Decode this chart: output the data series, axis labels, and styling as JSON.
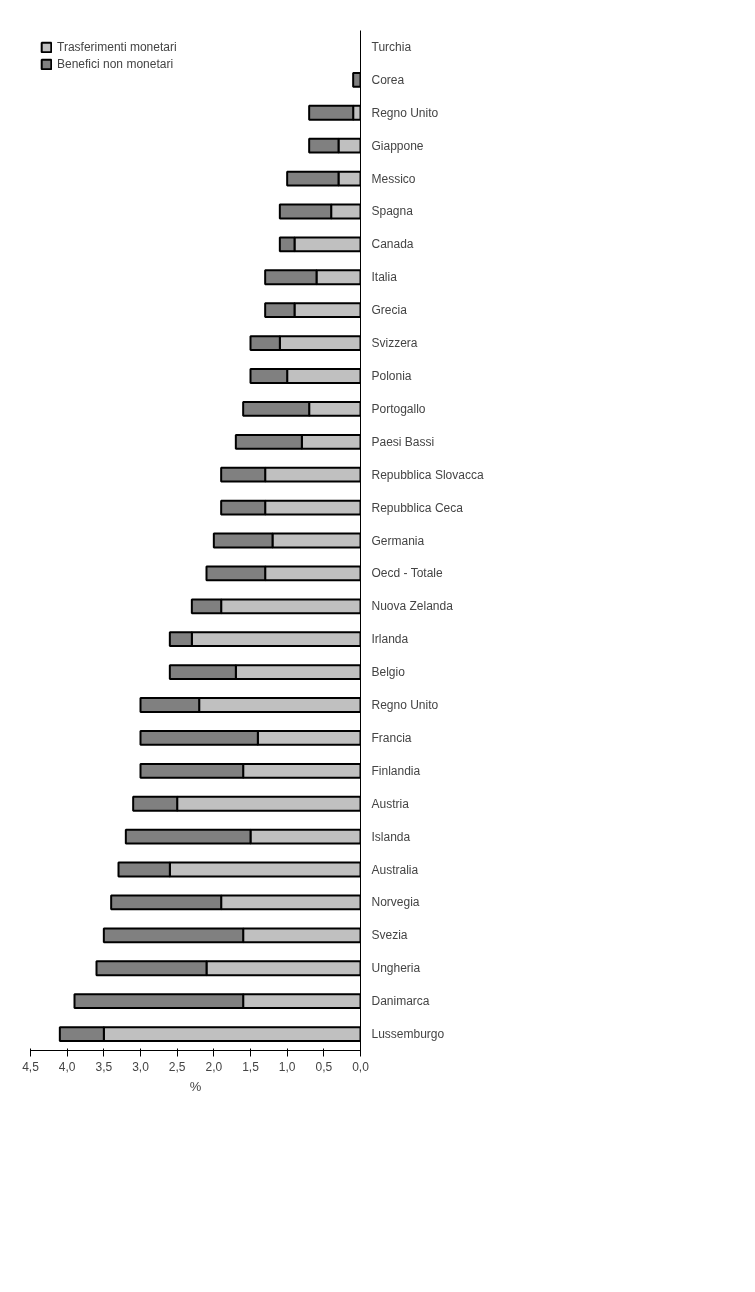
{
  "chart_data": {
    "type": "bar",
    "orientation": "horizontal",
    "stacked": true,
    "categories": [
      "Turchia",
      "Corea",
      "Regno Unito",
      "Giappone",
      "Messico",
      "Spagna",
      "Canada",
      "Italia",
      "Grecia",
      "Svizzera",
      "Polonia",
      "Portogallo",
      "Paesi Bassi",
      "Repubblica Slovacca",
      "Repubblica Ceca",
      "Germania",
      "Oecd - Totale",
      "Nuova Zelanda",
      "Irlanda",
      "Belgio",
      "Regno Unito",
      "Francia",
      "Finlandia",
      "Austria",
      "Islanda",
      "Australia",
      "Norvegia",
      "Svezia",
      "Ungheria",
      "Danimarca",
      "Lussemburgo"
    ],
    "series": [
      {
        "name": "Trasferimenti monetari",
        "color": "#c0c0c0",
        "values": [
          null,
          0,
          0.1,
          0.3,
          0.3,
          0.4,
          0.9,
          0.6,
          0.9,
          1.1,
          1.0,
          0.7,
          0.8,
          1.3,
          1.3,
          1.2,
          1.3,
          1.9,
          2.3,
          1.7,
          2.2,
          1.4,
          1.6,
          2.5,
          1.5,
          2.6,
          1.9,
          1.6,
          2.1,
          1.6,
          3.5
        ]
      },
      {
        "name": "Benefici non monetari",
        "color": "#808080",
        "values": [
          null,
          0.1,
          0.6,
          0.4,
          0.7,
          0.7,
          0.2,
          0.7,
          0.4,
          0.4,
          0.5,
          0.9,
          0.9,
          0.6,
          0.6,
          0.8,
          0.8,
          0.4,
          0.3,
          0.9,
          0.8,
          1.6,
          1.4,
          0.6,
          1.7,
          0.7,
          1.5,
          1.9,
          1.5,
          2.3,
          0.6
        ]
      }
    ],
    "xlabel": "%",
    "xlim": [
      4.5,
      0
    ],
    "xticks": [
      {
        "value": 4.5,
        "label": "4,5"
      },
      {
        "value": 4.0,
        "label": "4,0"
      },
      {
        "value": 3.5,
        "label": "3,5"
      },
      {
        "value": 3.0,
        "label": "3,0"
      },
      {
        "value": 2.5,
        "label": "2,5"
      },
      {
        "value": 2.0,
        "label": "2,0"
      },
      {
        "value": 1.5,
        "label": "1,5"
      },
      {
        "value": 1.0,
        "label": "1,0"
      },
      {
        "value": 0.5,
        "label": "0,5"
      },
      {
        "value": 0.0,
        "label": "0,0"
      }
    ],
    "grid": false,
    "legend": "top left"
  }
}
